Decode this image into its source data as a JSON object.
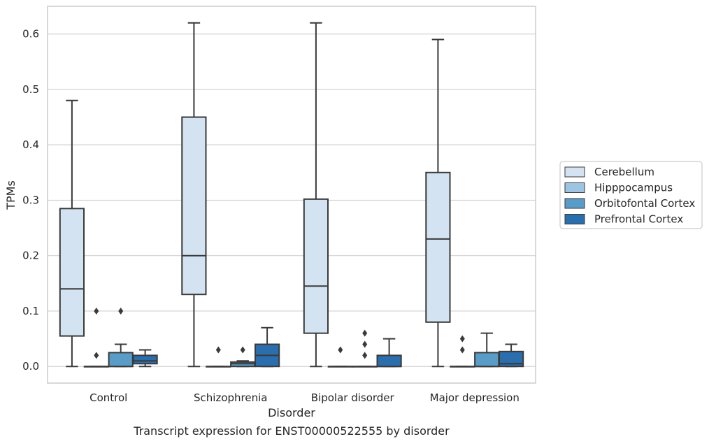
{
  "chart_data": {
    "type": "box",
    "xlabel": "Disorder",
    "ylabel": "TPMs",
    "caption": "Transcript expression for ENST00000522555 by disorder",
    "ylim": [
      -0.03,
      0.65
    ],
    "yticks": [
      0.0,
      0.1,
      0.2,
      0.3,
      0.4,
      0.5,
      0.6
    ],
    "ytick_labels": [
      "0.0",
      "0.1",
      "0.2",
      "0.3",
      "0.4",
      "0.5",
      "0.6"
    ],
    "grid": "horizontal",
    "legend_position": "right",
    "categories": [
      "Control",
      "Schizophrenia",
      "Bipolar disorder",
      "Major depression"
    ],
    "series": [
      {
        "name": "Cerebellum",
        "color": "#d4e3f1",
        "boxes": [
          {
            "min": 0.0,
            "q1": 0.055,
            "median": 0.14,
            "q3": 0.285,
            "max": 0.48,
            "outliers": []
          },
          {
            "min": 0.0,
            "q1": 0.13,
            "median": 0.2,
            "q3": 0.45,
            "max": 0.62,
            "outliers": []
          },
          {
            "min": 0.0,
            "q1": 0.06,
            "median": 0.145,
            "q3": 0.302,
            "max": 0.62,
            "outliers": []
          },
          {
            "min": 0.0,
            "q1": 0.08,
            "median": 0.23,
            "q3": 0.35,
            "max": 0.59,
            "outliers": []
          }
        ]
      },
      {
        "name": "Hipppocampus",
        "color": "#9dc4e0",
        "boxes": [
          {
            "min": 0.0,
            "q1": 0.0,
            "median": 0.0,
            "q3": 0.0,
            "max": 0.0,
            "outliers": [
              0.02,
              0.1
            ]
          },
          {
            "min": 0.0,
            "q1": 0.0,
            "median": 0.0,
            "q3": 0.0,
            "max": 0.0,
            "outliers": [
              0.03
            ]
          },
          {
            "min": 0.0,
            "q1": 0.0,
            "median": 0.0,
            "q3": 0.0,
            "max": 0.0,
            "outliers": [
              0.03
            ]
          },
          {
            "min": 0.0,
            "q1": 0.0,
            "median": 0.0,
            "q3": 0.0,
            "max": 0.0,
            "outliers": [
              0.03,
              0.05
            ]
          }
        ]
      },
      {
        "name": "Orbitofontal Cortex",
        "color": "#5a9cc8",
        "boxes": [
          {
            "min": 0.0,
            "q1": 0.0,
            "median": 0.0,
            "q3": 0.025,
            "max": 0.04,
            "outliers": [
              0.1
            ]
          },
          {
            "min": 0.0,
            "q1": 0.0,
            "median": 0.005,
            "q3": 0.008,
            "max": 0.01,
            "outliers": [
              0.03
            ]
          },
          {
            "min": 0.0,
            "q1": 0.0,
            "median": 0.0,
            "q3": 0.0,
            "max": 0.0,
            "outliers": [
              0.02,
              0.04,
              0.06
            ]
          },
          {
            "min": 0.0,
            "q1": 0.0,
            "median": 0.0,
            "q3": 0.025,
            "max": 0.06,
            "outliers": []
          }
        ]
      },
      {
        "name": "Prefrontal Cortex",
        "color": "#2a6ead",
        "boxes": [
          {
            "min": 0.0,
            "q1": 0.005,
            "median": 0.01,
            "q3": 0.02,
            "max": 0.03,
            "outliers": []
          },
          {
            "min": 0.0,
            "q1": 0.0,
            "median": 0.02,
            "q3": 0.04,
            "max": 0.07,
            "outliers": []
          },
          {
            "min": 0.0,
            "q1": 0.0,
            "median": 0.0,
            "q3": 0.02,
            "max": 0.05,
            "outliers": []
          },
          {
            "min": 0.0,
            "q1": 0.0,
            "median": 0.005,
            "q3": 0.027,
            "max": 0.04,
            "outliers": []
          }
        ]
      }
    ]
  }
}
